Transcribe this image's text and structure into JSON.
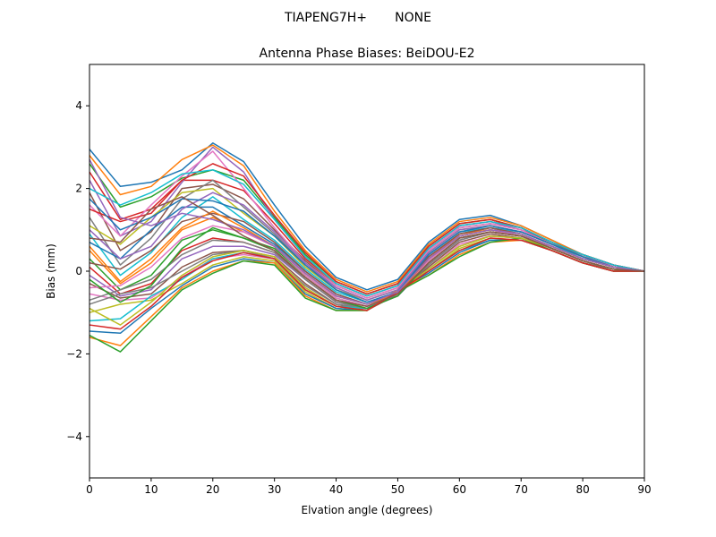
{
  "chart_data": {
    "type": "line",
    "suptitle": "TIAPENG7H+       NONE",
    "title": "Antenna Phase Biases: BeiDOU-E2",
    "xlabel": "Elvation angle (degrees)",
    "ylabel": "Bias (mm)",
    "xlim": [
      0,
      90
    ],
    "ylim": [
      -5,
      5
    ],
    "xticks": [
      0,
      10,
      20,
      30,
      40,
      50,
      60,
      70,
      80,
      90
    ],
    "xtick_labels": [
      "0",
      "10",
      "20",
      "30",
      "40",
      "50",
      "60",
      "70",
      "80",
      "90"
    ],
    "yticks": [
      -4,
      -2,
      0,
      2,
      4
    ],
    "ytick_labels": [
      "−4",
      "−2",
      "0",
      "2",
      "4"
    ],
    "grid": false,
    "legend": "none",
    "x": [
      0,
      5,
      10,
      15,
      20,
      25,
      30,
      35,
      40,
      45,
      50,
      55,
      60,
      65,
      70,
      75,
      80,
      85,
      90
    ],
    "colors": [
      "#1f77b4",
      "#ff7f0e",
      "#2ca02c",
      "#d62728",
      "#9467bd",
      "#8c564b",
      "#e377c2",
      "#7f7f7f",
      "#bcbd22",
      "#17becf"
    ],
    "series": [
      {
        "values": [
          2.95,
          2.05,
          2.15,
          2.45,
          3.1,
          2.65,
          1.6,
          0.6,
          -0.15,
          -0.45,
          -0.2,
          0.7,
          1.25,
          1.35,
          1.1,
          0.75,
          0.4,
          0.15,
          0.0
        ]
      },
      {
        "values": [
          2.8,
          1.85,
          2.05,
          2.7,
          3.05,
          2.55,
          1.45,
          0.5,
          -0.2,
          -0.5,
          -0.25,
          0.65,
          1.2,
          1.3,
          1.1,
          0.75,
          0.4,
          0.15,
          0.0
        ]
      },
      {
        "values": [
          2.6,
          1.55,
          1.8,
          2.25,
          2.45,
          2.2,
          1.3,
          0.4,
          -0.25,
          -0.55,
          -0.3,
          0.6,
          1.15,
          1.25,
          1.05,
          0.7,
          0.4,
          0.15,
          0.0
        ]
      },
      {
        "values": [
          2.4,
          1.25,
          1.5,
          2.2,
          2.2,
          1.95,
          1.15,
          0.3,
          -0.3,
          -0.6,
          -0.35,
          0.55,
          1.1,
          1.2,
          1.05,
          0.7,
          0.4,
          0.15,
          0.0
        ]
      },
      {
        "values": [
          2.2,
          0.85,
          1.2,
          2.15,
          3.0,
          2.4,
          1.25,
          0.35,
          -0.3,
          -0.6,
          -0.35,
          0.55,
          1.1,
          1.2,
          1.0,
          0.7,
          0.35,
          0.15,
          0.0
        ]
      },
      {
        "values": [
          1.9,
          0.5,
          0.95,
          2.0,
          2.1,
          1.75,
          1.0,
          0.25,
          -0.35,
          -0.65,
          -0.4,
          0.5,
          1.05,
          1.15,
          1.0,
          0.7,
          0.35,
          0.15,
          0.0
        ]
      },
      {
        "values": [
          1.6,
          0.85,
          1.6,
          2.3,
          2.9,
          2.0,
          1.05,
          0.2,
          -0.35,
          -0.65,
          -0.4,
          0.5,
          1.05,
          1.15,
          1.0,
          0.65,
          0.35,
          0.15,
          0.0
        ]
      },
      {
        "values": [
          1.3,
          0.15,
          0.8,
          1.75,
          2.2,
          1.55,
          0.9,
          0.15,
          -0.4,
          -0.7,
          -0.45,
          0.45,
          1.0,
          1.1,
          0.95,
          0.65,
          0.35,
          0.1,
          0.0
        ]
      },
      {
        "values": [
          1.1,
          0.65,
          1.3,
          1.9,
          2.0,
          1.4,
          0.85,
          0.1,
          -0.45,
          -0.7,
          -0.45,
          0.45,
          1.0,
          1.1,
          0.95,
          0.65,
          0.35,
          0.1,
          0.0
        ]
      },
      {
        "values": [
          0.9,
          -0.1,
          0.45,
          1.3,
          1.8,
          1.25,
          0.75,
          0.05,
          -0.5,
          -0.75,
          -0.5,
          0.4,
          0.95,
          1.05,
          0.95,
          0.65,
          0.3,
          0.1,
          0.0
        ]
      },
      {
        "values": [
          0.7,
          0.3,
          1.0,
          1.55,
          1.55,
          1.1,
          0.65,
          0.0,
          -0.55,
          -0.8,
          -0.5,
          0.35,
          0.9,
          1.05,
          0.9,
          0.6,
          0.3,
          0.1,
          0.0
        ]
      },
      {
        "values": [
          0.5,
          -0.3,
          0.2,
          1.0,
          1.3,
          0.95,
          0.6,
          -0.05,
          -0.6,
          -0.8,
          -0.55,
          0.3,
          0.9,
          1.0,
          0.9,
          0.6,
          0.3,
          0.1,
          0.0
        ]
      },
      {
        "values": [
          0.3,
          -0.45,
          -0.1,
          0.75,
          1.0,
          0.8,
          0.55,
          -0.1,
          -0.65,
          -0.85,
          -0.55,
          0.25,
          0.85,
          1.0,
          0.85,
          0.6,
          0.3,
          0.1,
          0.0
        ]
      },
      {
        "values": [
          0.1,
          -0.55,
          -0.3,
          0.5,
          0.8,
          0.7,
          0.45,
          -0.15,
          -0.7,
          -0.9,
          -0.6,
          0.2,
          0.8,
          0.95,
          0.85,
          0.55,
          0.25,
          0.05,
          0.0
        ]
      },
      {
        "values": [
          -0.1,
          -0.6,
          -0.45,
          0.3,
          0.6,
          0.6,
          0.4,
          -0.2,
          -0.75,
          -0.9,
          -0.6,
          0.15,
          0.75,
          0.95,
          0.85,
          0.55,
          0.25,
          0.05,
          0.0
        ]
      },
      {
        "values": [
          -0.3,
          -0.65,
          -0.55,
          0.1,
          0.45,
          0.5,
          0.35,
          -0.3,
          -0.8,
          -0.95,
          -0.55,
          0.1,
          0.7,
          0.9,
          0.8,
          0.55,
          0.25,
          0.05,
          0.0
        ]
      },
      {
        "values": [
          -0.55,
          -0.7,
          -0.65,
          -0.15,
          0.3,
          0.4,
          0.3,
          -0.4,
          -0.85,
          -0.95,
          -0.5,
          0.05,
          0.65,
          0.85,
          0.8,
          0.55,
          0.25,
          0.05,
          0.0
        ]
      },
      {
        "values": [
          -0.8,
          -0.55,
          -0.4,
          0.0,
          0.4,
          0.5,
          0.3,
          -0.35,
          -0.8,
          -0.9,
          -0.5,
          0.05,
          0.6,
          0.85,
          0.8,
          0.5,
          0.2,
          0.05,
          0.0
        ]
      },
      {
        "values": [
          -1.0,
          -0.8,
          -0.7,
          -0.3,
          0.15,
          0.35,
          0.25,
          -0.5,
          -0.9,
          -0.95,
          -0.5,
          0.0,
          0.55,
          0.8,
          0.75,
          0.5,
          0.2,
          0.0,
          0.0
        ]
      },
      {
        "values": [
          -1.2,
          -1.15,
          -0.6,
          -0.2,
          0.3,
          0.45,
          0.3,
          -0.45,
          -0.85,
          -0.9,
          -0.45,
          0.0,
          0.5,
          0.75,
          0.75,
          0.5,
          0.2,
          0.0,
          0.0
        ]
      },
      {
        "values": [
          -1.45,
          -1.5,
          -0.9,
          -0.35,
          0.1,
          0.3,
          0.2,
          -0.55,
          -0.9,
          -0.95,
          -0.45,
          -0.05,
          0.45,
          0.75,
          0.75,
          0.5,
          0.2,
          0.0,
          0.0
        ]
      },
      {
        "values": [
          -1.6,
          -1.8,
          -1.1,
          -0.4,
          0.0,
          0.25,
          0.2,
          -0.6,
          -0.95,
          -0.95,
          -0.45,
          -0.1,
          0.4,
          0.7,
          0.75,
          0.5,
          0.2,
          0.0,
          0.0
        ]
      },
      {
        "values": [
          -1.55,
          -1.95,
          -1.2,
          -0.45,
          -0.05,
          0.25,
          0.15,
          -0.65,
          -0.95,
          -0.95,
          -0.5,
          -0.1,
          0.35,
          0.7,
          0.8,
          0.5,
          0.2,
          0.0,
          0.0
        ]
      },
      {
        "values": [
          1.5,
          1.2,
          1.4,
          2.2,
          2.6,
          2.3,
          1.35,
          0.45,
          -0.25,
          -0.55,
          -0.3,
          0.6,
          1.15,
          1.25,
          1.05,
          0.7,
          0.4,
          0.15,
          0.0
        ]
      },
      {
        "values": [
          1.0,
          0.3,
          0.6,
          1.5,
          1.9,
          1.6,
          0.95,
          0.2,
          -0.4,
          -0.7,
          -0.45,
          0.45,
          1.0,
          1.1,
          0.95,
          0.65,
          0.35,
          0.1,
          0.0
        ]
      },
      {
        "values": [
          0.2,
          0.05,
          0.5,
          1.2,
          1.4,
          1.2,
          0.7,
          0.0,
          -0.55,
          -0.8,
          -0.5,
          0.35,
          0.9,
          1.05,
          0.9,
          0.6,
          0.3,
          0.1,
          0.0
        ]
      },
      {
        "values": [
          -0.4,
          -0.35,
          0.1,
          0.8,
          1.1,
          0.95,
          0.6,
          -0.1,
          -0.65,
          -0.85,
          -0.55,
          0.25,
          0.85,
          1.0,
          0.85,
          0.6,
          0.3,
          0.1,
          0.0
        ]
      },
      {
        "values": [
          -0.7,
          -0.45,
          -0.2,
          0.4,
          0.75,
          0.7,
          0.45,
          -0.2,
          -0.75,
          -0.9,
          -0.55,
          0.15,
          0.75,
          0.95,
          0.85,
          0.55,
          0.25,
          0.05,
          0.0
        ]
      },
      {
        "values": [
          -0.9,
          -1.3,
          -0.75,
          -0.1,
          0.35,
          0.5,
          0.35,
          -0.4,
          -0.85,
          -0.95,
          -0.5,
          0.05,
          0.6,
          0.85,
          0.8,
          0.55,
          0.25,
          0.05,
          0.0
        ]
      },
      {
        "values": [
          2.0,
          1.6,
          1.9,
          2.35,
          2.45,
          2.1,
          1.25,
          0.35,
          -0.3,
          -0.6,
          -0.35,
          0.55,
          1.1,
          1.2,
          1.05,
          0.7,
          0.4,
          0.15,
          0.0
        ]
      },
      {
        "values": [
          1.75,
          1.0,
          1.3,
          1.75,
          1.7,
          1.45,
          0.85,
          0.15,
          -0.45,
          -0.75,
          -0.5,
          0.4,
          0.95,
          1.1,
          0.95,
          0.65,
          0.35,
          0.1,
          0.0
        ]
      },
      {
        "values": [
          0.6,
          -0.25,
          0.3,
          1.05,
          1.45,
          1.05,
          0.6,
          -0.05,
          -0.6,
          -0.8,
          -0.55,
          0.3,
          0.85,
          1.0,
          0.9,
          0.6,
          0.3,
          0.1,
          0.0
        ]
      },
      {
        "values": [
          -0.2,
          -0.75,
          -0.35,
          0.55,
          1.05,
          0.8,
          0.5,
          -0.15,
          -0.7,
          -0.9,
          -0.6,
          0.2,
          0.8,
          0.95,
          0.85,
          0.55,
          0.25,
          0.05,
          0.0
        ]
      },
      {
        "values": [
          -1.3,
          -1.4,
          -0.85,
          -0.15,
          0.25,
          0.45,
          0.3,
          -0.45,
          -0.85,
          -0.95,
          -0.5,
          0.0,
          0.5,
          0.8,
          0.75,
          0.5,
          0.2,
          0.0,
          0.0
        ]
      },
      {
        "values": [
          2.7,
          1.3,
          1.1,
          1.4,
          1.25,
          1.0,
          0.6,
          -0.05,
          -0.6,
          -0.8,
          -0.5,
          0.3,
          0.85,
          1.0,
          0.9,
          0.6,
          0.3,
          0.1,
          0.0
        ]
      },
      {
        "values": [
          0.8,
          0.7,
          1.5,
          1.8,
          1.35,
          0.85,
          0.5,
          -0.15,
          -0.7,
          -0.85,
          -0.55,
          0.2,
          0.8,
          0.95,
          0.85,
          0.55,
          0.25,
          0.05,
          0.0
        ]
      }
    ]
  }
}
